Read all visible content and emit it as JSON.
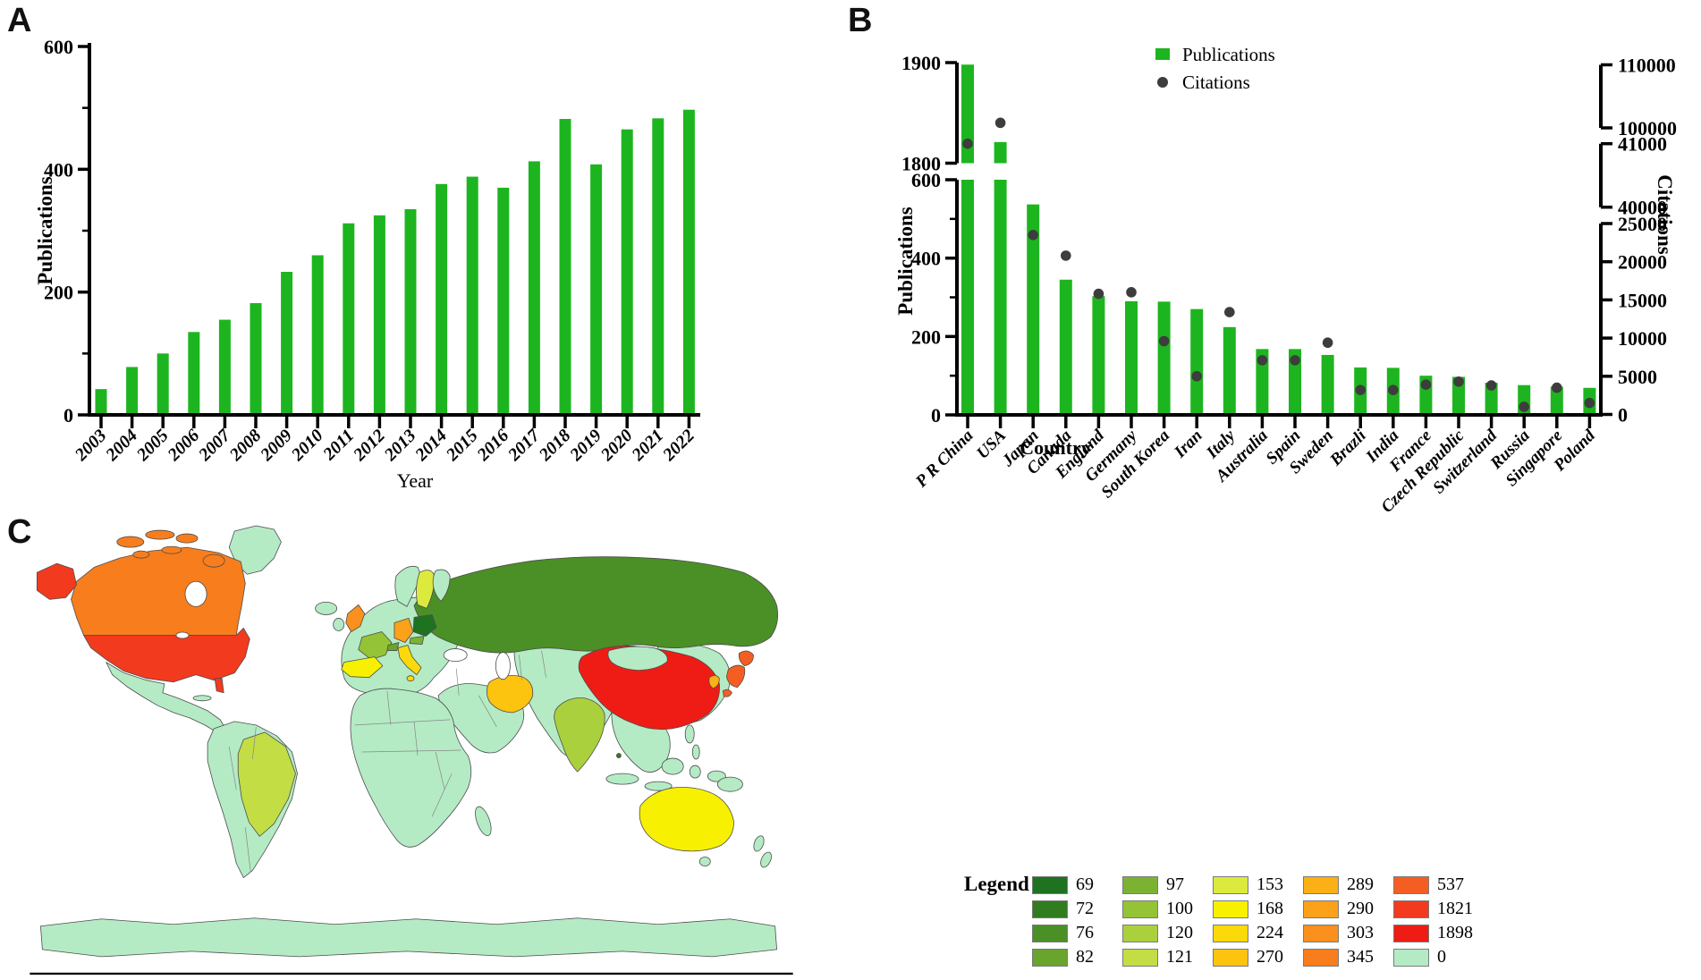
{
  "figure": {
    "panel_a_label": "A",
    "panel_b_label": "B",
    "panel_c_label": "C"
  },
  "chart_data": [
    {
      "id": "publications-by-year",
      "type": "bar",
      "title": "",
      "xlabel": "Year",
      "ylabel": "Publications",
      "categories": [
        "2003",
        "2004",
        "2005",
        "2006",
        "2007",
        "2008",
        "2009",
        "2010",
        "2011",
        "2012",
        "2013",
        "2014",
        "2015",
        "2016",
        "2017",
        "2018",
        "2019",
        "2020",
        "2021",
        "2022"
      ],
      "values": [
        42,
        78,
        100,
        135,
        155,
        182,
        233,
        260,
        312,
        325,
        335,
        376,
        388,
        370,
        413,
        482,
        408,
        465,
        483,
        497
      ],
      "ylim": [
        0,
        600
      ],
      "yticks": [
        0,
        200,
        400,
        600
      ],
      "yminorticks": [
        100,
        300,
        500
      ],
      "bar_color": "#1db51f",
      "grid": false
    },
    {
      "id": "publications-and-citations-by-country",
      "type": "bar+scatter",
      "title": "",
      "xlabel": "Country",
      "ylabel_left": "Publications",
      "ylabel_right": "Citations",
      "legend": [
        {
          "label": "Publications",
          "marker": "square",
          "color": "#1db51f"
        },
        {
          "label": "Citations",
          "marker": "circle",
          "color": "#3d3d3d"
        }
      ],
      "categories": [
        "P R China",
        "USA",
        "Japan",
        "Canada",
        "England",
        "Germany",
        "South Korea",
        "Iran",
        "Italy",
        "Australia",
        "Spain",
        "Sweden",
        "Brazli",
        "India",
        "France",
        "Czech Republic",
        "Switzerland",
        "Russia",
        "Singapore",
        "Poland"
      ],
      "series": [
        {
          "name": "Publications",
          "axis": "left",
          "values": [
            1898,
            1821,
            537,
            345,
            303,
            290,
            289,
            270,
            224,
            168,
            168,
            153,
            121,
            120,
            100,
            97,
            82,
            76,
            72,
            69
          ]
        },
        {
          "name": "Citations",
          "axis": "right",
          "values": [
            41000,
            100800,
            23500,
            20800,
            15800,
            16000,
            9600,
            5000,
            13400,
            7100,
            7100,
            9400,
            3200,
            3200,
            3900,
            4300,
            3800,
            1000,
            3500,
            1500
          ]
        }
      ],
      "left_axis": {
        "broken": true,
        "segments": [
          {
            "range": [
              0,
              600
            ],
            "ticks": [
              0,
              200,
              400,
              600
            ],
            "minor": [
              100,
              300,
              500
            ]
          },
          {
            "range": [
              1800,
              1900
            ],
            "ticks": [
              1800,
              1900
            ]
          }
        ]
      },
      "right_axis": {
        "broken": true,
        "segments": [
          {
            "range": [
              0,
              25000
            ],
            "ticks": [
              0,
              5000,
              10000,
              15000,
              20000,
              25000
            ]
          },
          {
            "range": [
              40000,
              41000
            ],
            "ticks": [
              40000,
              41000
            ]
          },
          {
            "range": [
              100000,
              110000
            ],
            "ticks": [
              100000,
              110000
            ]
          }
        ]
      }
    },
    {
      "id": "world-map-publications-choropleth",
      "type": "choropleth",
      "legend_title": "Legend",
      "classes": [
        {
          "value": "69",
          "color": "#1e7220"
        },
        {
          "value": "72",
          "color": "#2f7d1e"
        },
        {
          "value": "76",
          "color": "#4b8f27"
        },
        {
          "value": "82",
          "color": "#69a42c"
        },
        {
          "value": "97",
          "color": "#7cb232"
        },
        {
          "value": "100",
          "color": "#95c338"
        },
        {
          "value": "120",
          "color": "#abd03e"
        },
        {
          "value": "121",
          "color": "#c3dd45"
        },
        {
          "value": "153",
          "color": "#dcea3e"
        },
        {
          "value": "168",
          "color": "#f7f000"
        },
        {
          "value": "224",
          "color": "#fbd90b"
        },
        {
          "value": "270",
          "color": "#fcc30f"
        },
        {
          "value": "289",
          "color": "#fbb015"
        },
        {
          "value": "290",
          "color": "#fba11a"
        },
        {
          "value": "303",
          "color": "#fa901d"
        },
        {
          "value": "345",
          "color": "#f87d1d"
        },
        {
          "value": "537",
          "color": "#f55e22"
        },
        {
          "value": "1821",
          "color": "#f23a1e"
        },
        {
          "value": "1898",
          "color": "#ee1c15"
        },
        {
          "value": "0",
          "color": "#b4ebc5"
        }
      ],
      "country_values": {
        "China": 1898,
        "USA": 1821,
        "Japan": 537,
        "Canada": 345,
        "United Kingdom": 303,
        "Germany": 290,
        "South Korea": 289,
        "Iran": 270,
        "Italy": 224,
        "Australia": 168,
        "Spain": 168,
        "Sweden": 153,
        "Brazil": 121,
        "India": 120,
        "France": 100,
        "Czech Republic": 97,
        "Switzerland": 82,
        "Russia": 76,
        "Singapore": 72,
        "Poland": 69,
        "Other": 0
      }
    }
  ]
}
